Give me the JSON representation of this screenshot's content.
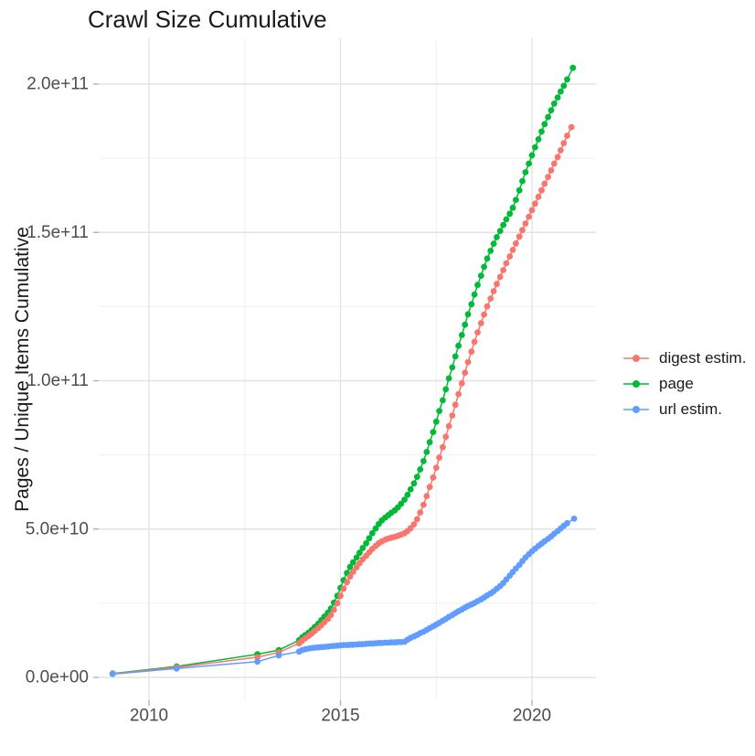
{
  "title": "Crawl Size Cumulative",
  "axes": {
    "y_title": "Pages / Unique Items Cumulative",
    "x_tick_labels": [
      "2010",
      "2015",
      "2020"
    ],
    "y_tick_labels": [
      "0.0e+00",
      "5.0e+10",
      "1.0e+11",
      "1.5e+11",
      "2.0e+11"
    ]
  },
  "legend": {
    "items": [
      {
        "label": "digest estim.",
        "color": "#F8766D"
      },
      {
        "label": "page",
        "color": "#00BA38"
      },
      {
        "label": "url estim.",
        "color": "#619CFF"
      }
    ]
  },
  "colors": {
    "background": "#ffffff",
    "grid_major": "#e3e3e3",
    "grid_minor": "#f0f0f0",
    "tick_mark": "#b3b3b3",
    "axis_text": "#4d4d4d",
    "title_text": "#1a1a1a"
  },
  "chart_data": {
    "type": "scatter",
    "title": "Crawl Size Cumulative",
    "xlabel": "",
    "ylabel": "Pages / Unique Items Cumulative",
    "grid": "on",
    "legend_position": "right",
    "x_breaks": [
      2010,
      2015,
      2020
    ],
    "x_minor_breaks": [
      2012.5,
      2017.5
    ],
    "y_breaks_e9": [
      0,
      50,
      100,
      150,
      200
    ],
    "y_minor_breaks_e9": [
      25,
      75,
      125,
      175
    ],
    "y_tick_labels": [
      "0.0e+00",
      "5.0e+10",
      "1.0e+11",
      "1.5e+11",
      "2.0e+11"
    ],
    "xlim": [
      2008.7,
      2021.7
    ],
    "ylim_e9": [
      -8,
      215
    ],
    "units_note": "y values are billions (1e9) of pages / unique items, cumulative",
    "series": [
      {
        "name": "digest estim.",
        "color": "#F8766D",
        "draw_order": 1,
        "points": [
          [
            2009.05,
            1.2
          ],
          [
            2010.72,
            3.4
          ],
          [
            2012.83,
            6.8
          ],
          [
            2013.39,
            8.4
          ],
          [
            2013.92,
            11.5
          ],
          [
            2014.0,
            12.4
          ],
          [
            2014.08,
            13.2
          ],
          [
            2014.17,
            14.0
          ],
          [
            2014.25,
            14.8
          ],
          [
            2014.33,
            15.7
          ],
          [
            2014.42,
            16.6
          ],
          [
            2014.5,
            17.6
          ],
          [
            2014.58,
            18.6
          ],
          [
            2014.67,
            19.7
          ],
          [
            2014.75,
            21.0
          ],
          [
            2014.83,
            22.8
          ],
          [
            2014.92,
            25.0
          ],
          [
            2015.0,
            27.5
          ],
          [
            2015.08,
            29.9
          ],
          [
            2015.17,
            32.1
          ],
          [
            2015.25,
            34.0
          ],
          [
            2015.33,
            35.6
          ],
          [
            2015.42,
            37.1
          ],
          [
            2015.5,
            38.5
          ],
          [
            2015.58,
            39.8
          ],
          [
            2015.67,
            41.0
          ],
          [
            2015.75,
            42.2
          ],
          [
            2015.83,
            43.3
          ],
          [
            2015.92,
            44.3
          ],
          [
            2016.0,
            45.2
          ],
          [
            2016.08,
            45.9
          ],
          [
            2016.17,
            46.4
          ],
          [
            2016.25,
            46.8
          ],
          [
            2016.33,
            47.1
          ],
          [
            2016.42,
            47.4
          ],
          [
            2016.5,
            47.7
          ],
          [
            2016.58,
            48.1
          ],
          [
            2016.67,
            48.6
          ],
          [
            2016.75,
            49.3
          ],
          [
            2016.83,
            50.3
          ],
          [
            2016.92,
            51.6
          ],
          [
            2017.0,
            53.3
          ],
          [
            2017.08,
            55.6
          ],
          [
            2017.17,
            58.2
          ],
          [
            2017.25,
            61.1
          ],
          [
            2017.33,
            64.2
          ],
          [
            2017.42,
            67.4
          ],
          [
            2017.5,
            70.7
          ],
          [
            2017.58,
            74.1
          ],
          [
            2017.67,
            77.6
          ],
          [
            2017.75,
            81.1
          ],
          [
            2017.83,
            84.7
          ],
          [
            2017.92,
            88.3
          ],
          [
            2018.0,
            91.9
          ],
          [
            2018.08,
            95.5
          ],
          [
            2018.17,
            99.1
          ],
          [
            2018.25,
            102.7
          ],
          [
            2018.33,
            106.3
          ],
          [
            2018.42,
            109.8
          ],
          [
            2018.5,
            113.1
          ],
          [
            2018.58,
            116.3
          ],
          [
            2018.67,
            119.4
          ],
          [
            2018.75,
            122.3
          ],
          [
            2018.83,
            125.1
          ],
          [
            2018.92,
            127.7
          ],
          [
            2019.0,
            130.2
          ],
          [
            2019.08,
            132.6
          ],
          [
            2019.17,
            135.0
          ],
          [
            2019.25,
            137.3
          ],
          [
            2019.33,
            139.6
          ],
          [
            2019.42,
            141.9
          ],
          [
            2019.5,
            144.1
          ],
          [
            2019.58,
            146.3
          ],
          [
            2019.67,
            148.6
          ],
          [
            2019.75,
            150.8
          ],
          [
            2019.83,
            153.0
          ],
          [
            2019.92,
            155.3
          ],
          [
            2020.0,
            157.5
          ],
          [
            2020.08,
            159.7
          ],
          [
            2020.17,
            162.0
          ],
          [
            2020.25,
            164.2
          ],
          [
            2020.33,
            166.4
          ],
          [
            2020.42,
            168.7
          ],
          [
            2020.5,
            170.9
          ],
          [
            2020.58,
            173.2
          ],
          [
            2020.67,
            175.4
          ],
          [
            2020.75,
            177.7
          ],
          [
            2020.83,
            180.1
          ],
          [
            2020.92,
            182.6
          ],
          [
            2021.03,
            185.5
          ]
        ]
      },
      {
        "name": "page",
        "color": "#00BA38",
        "draw_order": 0,
        "points": [
          [
            2009.05,
            1.3
          ],
          [
            2010.72,
            3.7
          ],
          [
            2012.83,
            7.8
          ],
          [
            2013.39,
            9.2
          ],
          [
            2013.92,
            12.5
          ],
          [
            2014.0,
            13.5
          ],
          [
            2014.08,
            14.3
          ],
          [
            2014.17,
            15.1
          ],
          [
            2014.25,
            16.0
          ],
          [
            2014.33,
            17.0
          ],
          [
            2014.42,
            18.1
          ],
          [
            2014.5,
            19.3
          ],
          [
            2014.58,
            20.5
          ],
          [
            2014.67,
            21.8
          ],
          [
            2014.75,
            23.2
          ],
          [
            2014.83,
            25.2
          ],
          [
            2014.92,
            27.5
          ],
          [
            2015.0,
            30.2
          ],
          [
            2015.08,
            32.8
          ],
          [
            2015.17,
            35.2
          ],
          [
            2015.25,
            37.2
          ],
          [
            2015.33,
            38.8
          ],
          [
            2015.42,
            40.4
          ],
          [
            2015.5,
            42.0
          ],
          [
            2015.58,
            43.6
          ],
          [
            2015.67,
            45.2
          ],
          [
            2015.75,
            46.9
          ],
          [
            2015.83,
            48.6
          ],
          [
            2015.92,
            50.2
          ],
          [
            2016.0,
            51.7
          ],
          [
            2016.08,
            52.9
          ],
          [
            2016.17,
            53.9
          ],
          [
            2016.25,
            54.7
          ],
          [
            2016.33,
            55.5
          ],
          [
            2016.42,
            56.3
          ],
          [
            2016.5,
            57.3
          ],
          [
            2016.58,
            58.5
          ],
          [
            2016.67,
            59.9
          ],
          [
            2016.75,
            61.5
          ],
          [
            2016.83,
            63.4
          ],
          [
            2016.92,
            65.4
          ],
          [
            2017.0,
            67.6
          ],
          [
            2017.08,
            70.1
          ],
          [
            2017.17,
            72.9
          ],
          [
            2017.25,
            76.0
          ],
          [
            2017.33,
            79.3
          ],
          [
            2017.42,
            82.7
          ],
          [
            2017.5,
            86.2
          ],
          [
            2017.58,
            89.8
          ],
          [
            2017.67,
            93.4
          ],
          [
            2017.75,
            97.1
          ],
          [
            2017.83,
            100.8
          ],
          [
            2017.92,
            104.5
          ],
          [
            2018.0,
            108.2
          ],
          [
            2018.08,
            111.8
          ],
          [
            2018.17,
            115.4
          ],
          [
            2018.25,
            118.9
          ],
          [
            2018.33,
            122.4
          ],
          [
            2018.42,
            125.8
          ],
          [
            2018.5,
            129.1
          ],
          [
            2018.58,
            132.3
          ],
          [
            2018.67,
            135.4
          ],
          [
            2018.75,
            138.4
          ],
          [
            2018.83,
            141.2
          ],
          [
            2018.92,
            143.8
          ],
          [
            2019.0,
            146.2
          ],
          [
            2019.08,
            148.4
          ],
          [
            2019.17,
            150.5
          ],
          [
            2019.25,
            152.5
          ],
          [
            2019.33,
            154.4
          ],
          [
            2019.42,
            156.3
          ],
          [
            2019.5,
            158.3
          ],
          [
            2019.58,
            161.0
          ],
          [
            2019.67,
            164.2
          ],
          [
            2019.75,
            167.3
          ],
          [
            2019.83,
            170.3
          ],
          [
            2019.92,
            173.2
          ],
          [
            2020.0,
            176.0
          ],
          [
            2020.08,
            178.7
          ],
          [
            2020.17,
            181.4
          ],
          [
            2020.25,
            184.0
          ],
          [
            2020.33,
            186.5
          ],
          [
            2020.42,
            188.9
          ],
          [
            2020.5,
            191.2
          ],
          [
            2020.58,
            193.4
          ],
          [
            2020.67,
            195.5
          ],
          [
            2020.75,
            197.5
          ],
          [
            2020.83,
            199.4
          ],
          [
            2020.92,
            201.6
          ],
          [
            2021.07,
            205.5
          ]
        ]
      },
      {
        "name": "url estim.",
        "color": "#619CFF",
        "draw_order": 2,
        "points": [
          [
            2009.05,
            1.1
          ],
          [
            2010.72,
            3.0
          ],
          [
            2012.83,
            5.3
          ],
          [
            2013.39,
            7.4
          ],
          [
            2013.92,
            8.7
          ],
          [
            2014.0,
            9.2
          ],
          [
            2014.08,
            9.5
          ],
          [
            2014.17,
            9.7
          ],
          [
            2014.25,
            9.9
          ],
          [
            2014.33,
            10.0
          ],
          [
            2014.42,
            10.1
          ],
          [
            2014.5,
            10.2
          ],
          [
            2014.58,
            10.3
          ],
          [
            2014.67,
            10.4
          ],
          [
            2014.75,
            10.5
          ],
          [
            2014.83,
            10.6
          ],
          [
            2014.92,
            10.7
          ],
          [
            2015.0,
            10.8
          ],
          [
            2015.08,
            10.9
          ],
          [
            2015.17,
            10.9
          ],
          [
            2015.25,
            11.0
          ],
          [
            2015.33,
            11.0
          ],
          [
            2015.42,
            11.1
          ],
          [
            2015.5,
            11.2
          ],
          [
            2015.58,
            11.2
          ],
          [
            2015.67,
            11.3
          ],
          [
            2015.75,
            11.4
          ],
          [
            2015.83,
            11.4
          ],
          [
            2015.92,
            11.5
          ],
          [
            2016.0,
            11.6
          ],
          [
            2016.08,
            11.6
          ],
          [
            2016.17,
            11.7
          ],
          [
            2016.25,
            11.7
          ],
          [
            2016.33,
            11.8
          ],
          [
            2016.42,
            11.8
          ],
          [
            2016.5,
            11.9
          ],
          [
            2016.58,
            11.9
          ],
          [
            2016.67,
            12.0
          ],
          [
            2016.75,
            12.7
          ],
          [
            2016.83,
            13.3
          ],
          [
            2016.92,
            13.8
          ],
          [
            2017.0,
            14.3
          ],
          [
            2017.08,
            14.9
          ],
          [
            2017.17,
            15.4
          ],
          [
            2017.25,
            16.0
          ],
          [
            2017.33,
            16.6
          ],
          [
            2017.42,
            17.2
          ],
          [
            2017.5,
            17.8
          ],
          [
            2017.58,
            18.4
          ],
          [
            2017.67,
            19.1
          ],
          [
            2017.75,
            19.7
          ],
          [
            2017.83,
            20.4
          ],
          [
            2017.92,
            21.0
          ],
          [
            2018.0,
            21.7
          ],
          [
            2018.08,
            22.3
          ],
          [
            2018.17,
            22.9
          ],
          [
            2018.25,
            23.5
          ],
          [
            2018.33,
            24.1
          ],
          [
            2018.42,
            24.6
          ],
          [
            2018.5,
            25.1
          ],
          [
            2018.58,
            25.7
          ],
          [
            2018.67,
            26.3
          ],
          [
            2018.75,
            26.9
          ],
          [
            2018.83,
            27.6
          ],
          [
            2018.92,
            28.3
          ],
          [
            2019.0,
            29.0
          ],
          [
            2019.08,
            29.9
          ],
          [
            2019.17,
            30.8
          ],
          [
            2019.25,
            31.8
          ],
          [
            2019.33,
            33.0
          ],
          [
            2019.42,
            34.3
          ],
          [
            2019.5,
            35.5
          ],
          [
            2019.58,
            36.7
          ],
          [
            2019.67,
            37.9
          ],
          [
            2019.75,
            39.2
          ],
          [
            2019.83,
            40.4
          ],
          [
            2019.92,
            41.5
          ],
          [
            2020.0,
            42.5
          ],
          [
            2020.08,
            43.4
          ],
          [
            2020.17,
            44.3
          ],
          [
            2020.25,
            45.1
          ],
          [
            2020.33,
            45.9
          ],
          [
            2020.42,
            46.7
          ],
          [
            2020.5,
            47.5
          ],
          [
            2020.58,
            48.4
          ],
          [
            2020.67,
            49.3
          ],
          [
            2020.75,
            50.2
          ],
          [
            2020.83,
            51.1
          ],
          [
            2020.92,
            52.0
          ],
          [
            2021.1,
            53.5
          ]
        ]
      }
    ]
  }
}
